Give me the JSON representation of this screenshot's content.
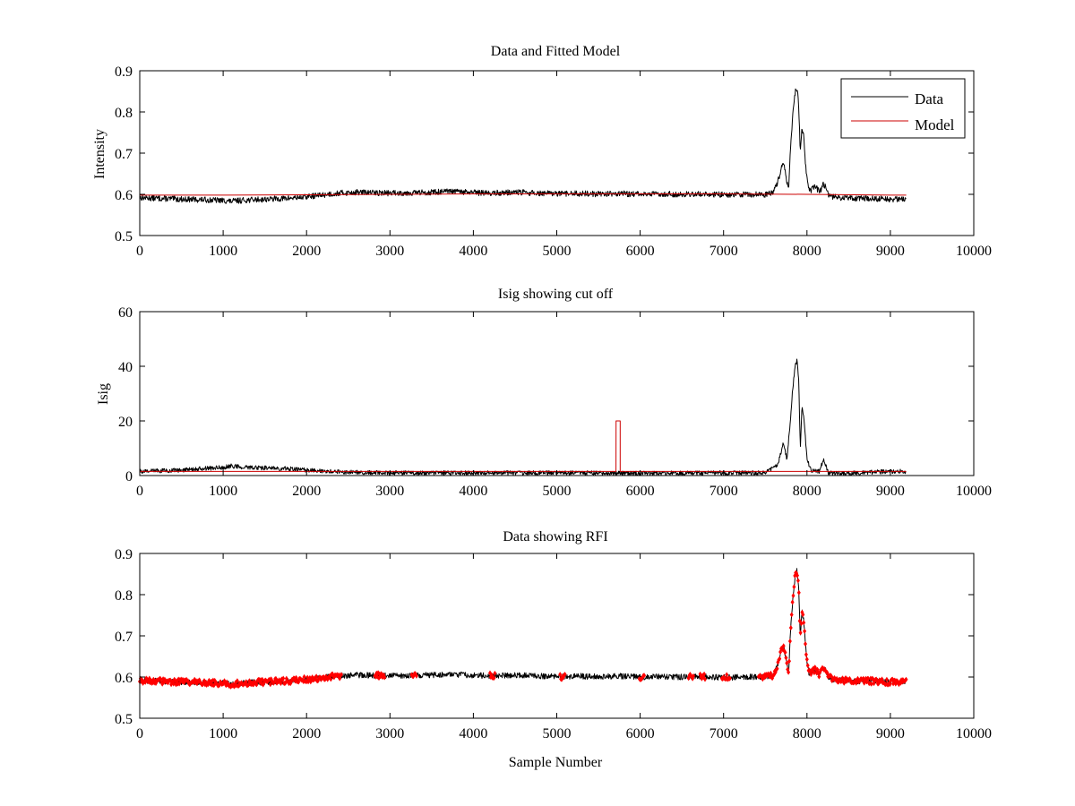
{
  "chart_data": [
    {
      "type": "line",
      "title": "Data and Fitted Model",
      "xlabel": "",
      "ylabel": "Intensity",
      "xlim": [
        0,
        10000
      ],
      "ylim": [
        0.5,
        0.9
      ],
      "xticks": [
        "0",
        "1000",
        "2000",
        "3000",
        "4000",
        "5000",
        "6000",
        "7000",
        "8000",
        "9000",
        "10000"
      ],
      "yticks": [
        "0.5",
        "0.6",
        "0.7",
        "0.8",
        "0.9"
      ],
      "legend_position": "top-right",
      "series": [
        {
          "name": "Data",
          "color": "#000000",
          "x": [
            0,
            250,
            500,
            750,
            1000,
            1100,
            1250,
            1500,
            1750,
            2000,
            2250,
            2400,
            2600,
            2800,
            3000,
            3300,
            3500,
            3750,
            4000,
            4250,
            4500,
            4750,
            5000,
            5250,
            5500,
            5750,
            6000,
            6250,
            6500,
            6750,
            7000,
            7250,
            7500,
            7600,
            7650,
            7700,
            7720,
            7750,
            7780,
            7800,
            7830,
            7860,
            7880,
            7900,
            7920,
            7940,
            7960,
            7980,
            8000,
            8020,
            8050,
            8100,
            8150,
            8200,
            8230,
            8260,
            8300,
            8400,
            8600,
            8800,
            9000,
            9190
          ],
          "y": [
            0.592,
            0.59,
            0.588,
            0.587,
            0.585,
            0.583,
            0.586,
            0.588,
            0.59,
            0.594,
            0.6,
            0.603,
            0.605,
            0.604,
            0.603,
            0.604,
            0.605,
            0.607,
            0.604,
            0.603,
            0.605,
            0.603,
            0.601,
            0.602,
            0.601,
            0.602,
            0.6,
            0.601,
            0.6,
            0.601,
            0.599,
            0.6,
            0.6,
            0.605,
            0.63,
            0.67,
            0.675,
            0.64,
            0.61,
            0.7,
            0.79,
            0.85,
            0.858,
            0.82,
            0.7,
            0.76,
            0.74,
            0.68,
            0.64,
            0.61,
            0.61,
            0.62,
            0.605,
            0.625,
            0.615,
            0.6,
            0.595,
            0.592,
            0.59,
            0.59,
            0.588,
            0.59
          ],
          "noise": 0.007
        },
        {
          "name": "Model",
          "color": "#cc0000",
          "x": [
            0,
            1000,
            2000,
            3000,
            4000,
            5000,
            6000,
            7000,
            8000,
            9000,
            9190
          ],
          "y": [
            0.598,
            0.598,
            0.599,
            0.6,
            0.601,
            0.601,
            0.601,
            0.601,
            0.6,
            0.598,
            0.598
          ]
        }
      ]
    },
    {
      "type": "line",
      "title": "Isig showing cut off",
      "xlabel": "",
      "ylabel": "Isig",
      "xlim": [
        0,
        10000
      ],
      "ylim": [
        0,
        60
      ],
      "xticks": [
        "0",
        "1000",
        "2000",
        "3000",
        "4000",
        "5000",
        "6000",
        "7000",
        "8000",
        "9000",
        "10000"
      ],
      "yticks": [
        "0",
        "20",
        "40",
        "60"
      ],
      "series": [
        {
          "name": "Isig",
          "color": "#000000",
          "x": [
            0,
            500,
            750,
            1000,
            1100,
            1250,
            1500,
            1750,
            2000,
            2250,
            2500,
            3000,
            4000,
            5000,
            6000,
            7000,
            7500,
            7650,
            7700,
            7720,
            7760,
            7800,
            7830,
            7860,
            7880,
            7900,
            7920,
            7940,
            7960,
            7980,
            8000,
            8050,
            8150,
            8200,
            8230,
            8260,
            8300,
            8500,
            9000,
            9190
          ],
          "y": [
            1.5,
            2.0,
            2.5,
            3.0,
            3.5,
            3.0,
            2.8,
            2.5,
            2.0,
            1.5,
            1.2,
            1.0,
            1.0,
            1.0,
            0.8,
            1.0,
            1.0,
            4.0,
            10.0,
            12.0,
            6.0,
            20.0,
            32.0,
            40.0,
            42.0,
            36.0,
            10.0,
            26.0,
            22.0,
            14.0,
            6.0,
            2.0,
            1.5,
            6.0,
            3.0,
            1.0,
            0.8,
            0.8,
            1.5,
            1.5
          ],
          "noise": 0.8
        },
        {
          "name": "Cut off",
          "color": "#cc0000",
          "x": [
            0,
            5700,
            5710,
            5711,
            5760,
            5761,
            5770,
            9190
          ],
          "y": [
            1.5,
            1.5,
            1.5,
            20,
            20,
            1.5,
            1.5,
            1.5
          ]
        }
      ]
    },
    {
      "type": "scatter",
      "title": "Data showing RFI",
      "xlabel": "Sample Number",
      "ylabel": "",
      "xlim": [
        0,
        10000
      ],
      "ylim": [
        0.5,
        0.9
      ],
      "xticks": [
        "0",
        "1000",
        "2000",
        "3000",
        "4000",
        "5000",
        "6000",
        "7000",
        "8000",
        "9000",
        "10000"
      ],
      "yticks": [
        "0.5",
        "0.6",
        "0.7",
        "0.8",
        "0.9"
      ],
      "series": [
        {
          "name": "Data",
          "color": "#000000",
          "x": [
            0,
            250,
            500,
            750,
            1000,
            1100,
            1250,
            1500,
            1750,
            2000,
            2250,
            2400,
            2600,
            2800,
            3000,
            3300,
            3500,
            3750,
            4000,
            4250,
            4500,
            4750,
            5000,
            5250,
            5500,
            5750,
            6000,
            6250,
            6500,
            6750,
            7000,
            7250,
            7500,
            7600,
            7650,
            7700,
            7720,
            7750,
            7780,
            7800,
            7830,
            7860,
            7880,
            7900,
            7920,
            7940,
            7960,
            7980,
            8000,
            8020,
            8050,
            8100,
            8150,
            8200,
            8230,
            8260,
            8300,
            8400,
            8600,
            8800,
            9000,
            9190
          ],
          "y": [
            0.592,
            0.59,
            0.588,
            0.587,
            0.585,
            0.583,
            0.586,
            0.588,
            0.59,
            0.594,
            0.6,
            0.603,
            0.605,
            0.604,
            0.603,
            0.604,
            0.605,
            0.607,
            0.604,
            0.603,
            0.605,
            0.603,
            0.601,
            0.602,
            0.601,
            0.602,
            0.6,
            0.601,
            0.6,
            0.601,
            0.599,
            0.6,
            0.6,
            0.605,
            0.63,
            0.67,
            0.675,
            0.64,
            0.61,
            0.7,
            0.79,
            0.85,
            0.858,
            0.82,
            0.7,
            0.76,
            0.74,
            0.68,
            0.64,
            0.61,
            0.61,
            0.62,
            0.605,
            0.625,
            0.615,
            0.6,
            0.595,
            0.592,
            0.59,
            0.59,
            0.588,
            0.59
          ],
          "noise": 0.007
        },
        {
          "name": "RFI",
          "color": "#ff0000",
          "marker": "diamond",
          "ranges": [
            [
              0,
              2420
            ],
            [
              2820,
              2940
            ],
            [
              3260,
              3320
            ],
            [
              4200,
              4260
            ],
            [
              5040,
              5100
            ],
            [
              5990,
              6050
            ],
            [
              6580,
              6640
            ],
            [
              6720,
              6780
            ],
            [
              6980,
              7080
            ],
            [
              7420,
              9190
            ]
          ]
        }
      ]
    }
  ]
}
